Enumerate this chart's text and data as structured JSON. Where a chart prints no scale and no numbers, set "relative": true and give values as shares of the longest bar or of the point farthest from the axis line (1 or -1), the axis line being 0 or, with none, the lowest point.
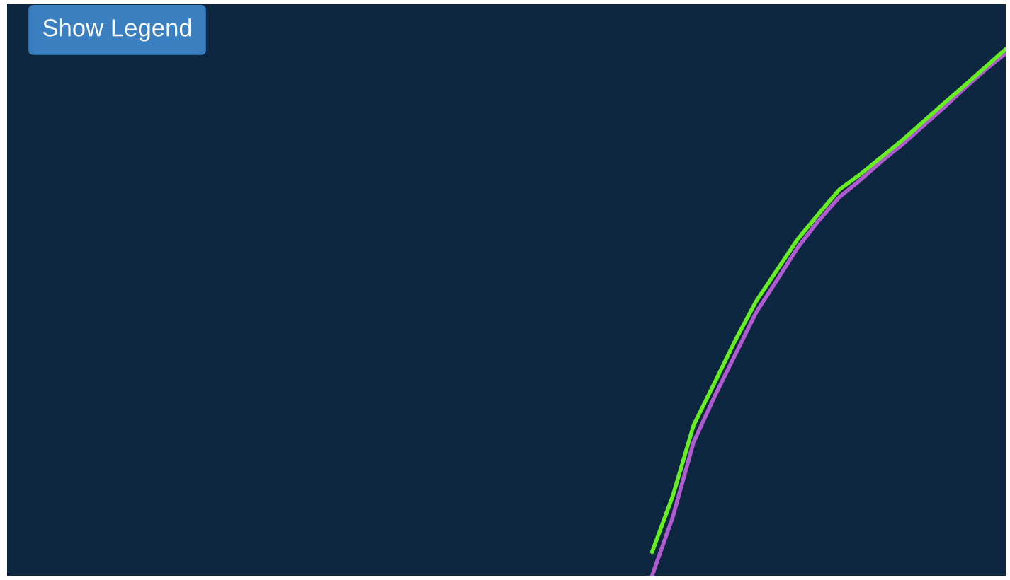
{
  "chart_data": {
    "type": "line",
    "relative": true,
    "legend": false,
    "annotations": [
      "Show Legend"
    ],
    "categories": [
      null,
      null,
      null,
      null,
      null,
      null,
      null,
      null,
      null,
      null,
      null,
      null,
      null,
      null,
      null,
      null,
      null,
      null,
      null,
      null,
      null,
      null,
      null,
      null,
      null,
      null,
      null,
      null,
      null,
      null,
      null,
      null,
      null,
      null,
      null,
      null,
      null,
      null,
      null,
      null,
      null,
      null,
      null,
      null,
      null,
      null,
      null,
      null,
      null
    ],
    "series": [
      {
        "color": "#b05ad0",
        "values": [
          null,
          null,
          null,
          null,
          null,
          null,
          null,
          null,
          null,
          null,
          null,
          null,
          null,
          null,
          null,
          null,
          null,
          null,
          null,
          null,
          null,
          null,
          null,
          null,
          null,
          null,
          null,
          null,
          null,
          null,
          null,
          0,
          0.112,
          0.254,
          0.34,
          0.42,
          0.5,
          0.561,
          0.623,
          0.674,
          0.719,
          0.751,
          0.786,
          0.818,
          0.853,
          0.888,
          0.925,
          0.96,
          0.992
        ]
      },
      {
        "color": "#66ee22",
        "values": [
          null,
          null,
          null,
          null,
          null,
          null,
          null,
          null,
          null,
          null,
          null,
          null,
          null,
          null,
          null,
          null,
          null,
          null,
          null,
          null,
          null,
          null,
          null,
          null,
          null,
          null,
          null,
          null,
          null,
          null,
          null,
          0.045,
          0.152,
          0.286,
          0.366,
          0.447,
          0.521,
          0.58,
          0.639,
          0.687,
          0.733,
          0.762,
          0.794,
          0.826,
          0.861,
          0.896,
          0.93,
          0.965,
          1
        ]
      }
    ]
  }
}
